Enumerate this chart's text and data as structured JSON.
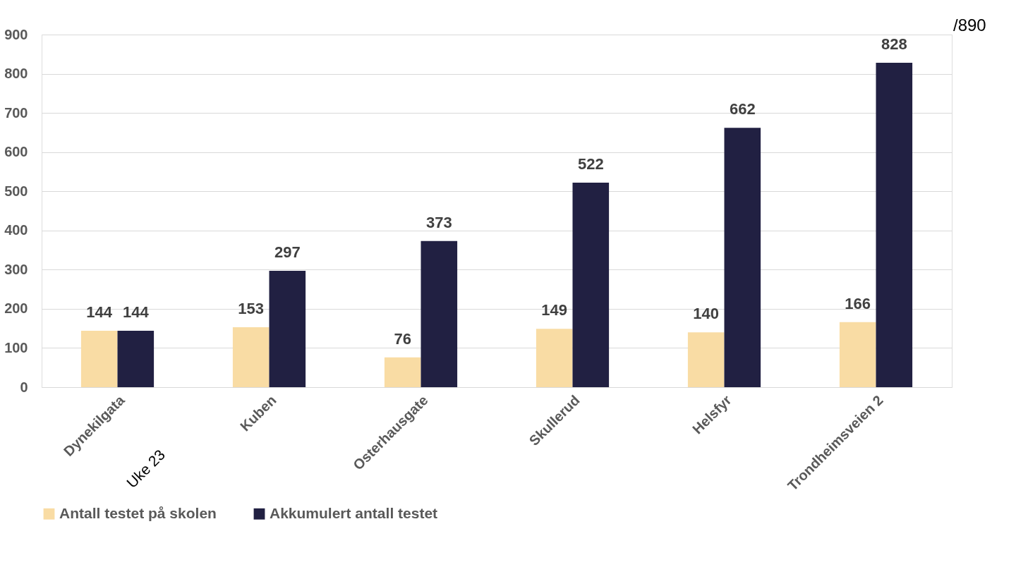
{
  "chart_data": {
    "type": "bar",
    "categories": [
      "Dynekilgata",
      "Kuben",
      "Osterhausgate",
      "Skullerud",
      "Helsfyr",
      "Trondheimsveien 2"
    ],
    "series": [
      {
        "name": "Antall testet på skolen",
        "color": "#f9dca4",
        "values": [
          144,
          153,
          76,
          149,
          140,
          166
        ]
      },
      {
        "name": "Akkumulert antall testet",
        "color": "#212042",
        "values": [
          144,
          297,
          373,
          522,
          662,
          828
        ]
      }
    ],
    "ylim": [
      0,
      900
    ],
    "yticks": [
      0,
      100,
      200,
      300,
      400,
      500,
      600,
      700,
      800,
      900
    ],
    "grid": "y",
    "legend": "bottom",
    "data_labels": true,
    "annotations": [
      "/890",
      "Uke 23"
    ]
  }
}
